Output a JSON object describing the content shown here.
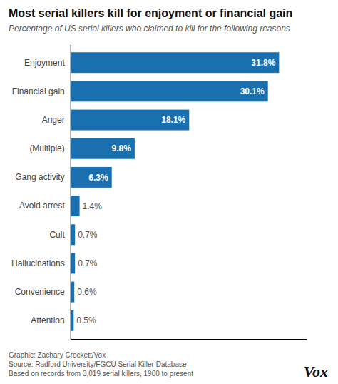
{
  "chart_data": {
    "type": "bar",
    "orientation": "horizontal",
    "title": "Most serial killers kill for enjoyment or financial gain",
    "subtitle": "Percentage of US serial killers who claimed to kill for the following reasons",
    "categories": [
      "Enjoyment",
      "Financial gain",
      "Anger",
      "(Multiple)",
      "Gang activity",
      "Avoid arrest",
      "Cult",
      "Hallucinations",
      "Convenience",
      "Attention"
    ],
    "values": [
      31.8,
      30.1,
      18.1,
      9.8,
      6.3,
      1.4,
      0.7,
      0.7,
      0.6,
      0.5
    ],
    "value_labels": [
      "31.8%",
      "30.1%",
      "18.1%",
      "9.8%",
      "6.3%",
      "1.4%",
      "0.7%",
      "0.7%",
      "0.6%",
      "0.5%"
    ],
    "data_labels": true,
    "color": "#1a6faf",
    "xlim": [
      0,
      36
    ],
    "xticks": [],
    "grid": false,
    "tick_labels": "y",
    "annotations": [
      "Graphic: Zachary Crockett/Vox",
      "Source: Radford University/FGCU Serial Killer Database",
      "Based on records from 3,019 serial killers, 1900 to present",
      "Vox"
    ]
  }
}
